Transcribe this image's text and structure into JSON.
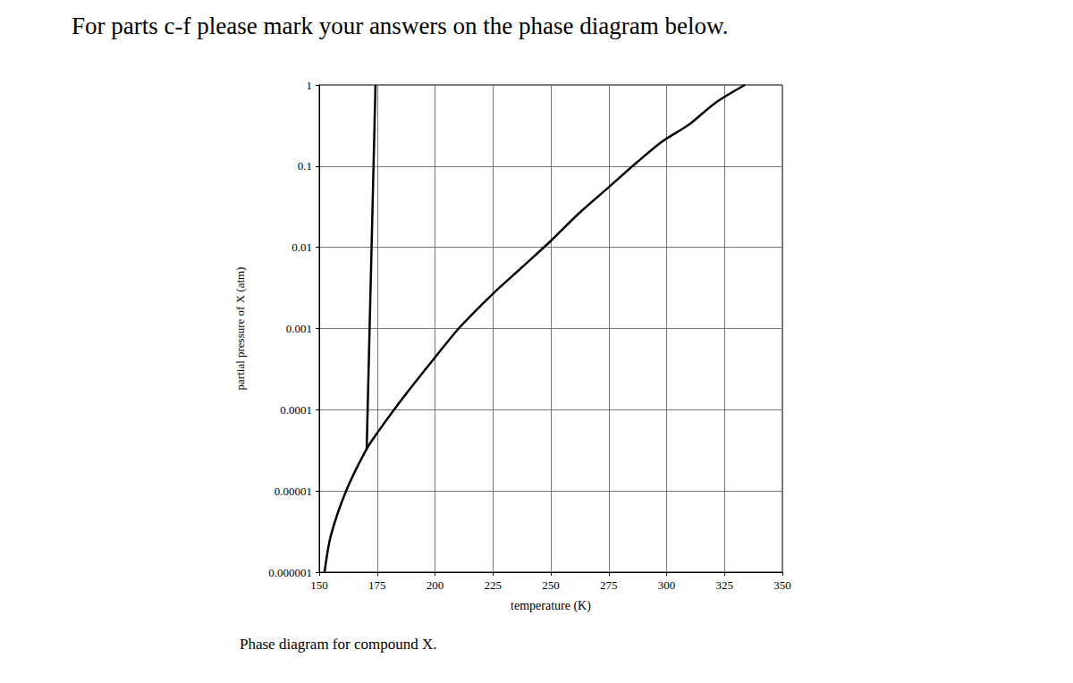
{
  "chart_data": {
    "type": "line",
    "title": "For parts c-f please mark your answers on the phase diagram below.",
    "caption": "Phase diagram for compound X.",
    "x_label": "temperature (K)",
    "y_label": "partial pressure of X (atm)",
    "xlim": [
      150,
      350
    ],
    "xticks": [
      150,
      175,
      200,
      225,
      250,
      275,
      300,
      325,
      350
    ],
    "ylim": [
      1e-06,
      1
    ],
    "yticks": [
      1e-06,
      1e-05,
      0.0001,
      0.001,
      0.01,
      0.1,
      1
    ],
    "log": "y",
    "grid": true,
    "series": [
      {
        "color": "#000000",
        "values": [
          [
            170.5,
            3.3e-05
          ],
          [
            174.3,
            1
          ]
        ]
      },
      {
        "color": "#000000",
        "values": [
          [
            152.3,
            1e-06
          ],
          [
            155,
            2.8e-06
          ],
          [
            161.6,
            1e-05
          ],
          [
            170.5,
            3.3e-05
          ],
          [
            175.5,
            5.4e-05
          ],
          [
            187,
            0.00015
          ],
          [
            200,
            0.00044
          ],
          [
            210.2,
            0.001
          ],
          [
            224.5,
            0.0026
          ],
          [
            237,
            0.0055
          ],
          [
            250,
            0.012
          ],
          [
            262,
            0.026
          ],
          [
            274.7,
            0.054
          ],
          [
            287,
            0.11
          ],
          [
            298,
            0.2
          ],
          [
            310,
            0.33
          ],
          [
            321,
            0.6
          ],
          [
            333.8,
            1
          ]
        ]
      }
    ]
  }
}
